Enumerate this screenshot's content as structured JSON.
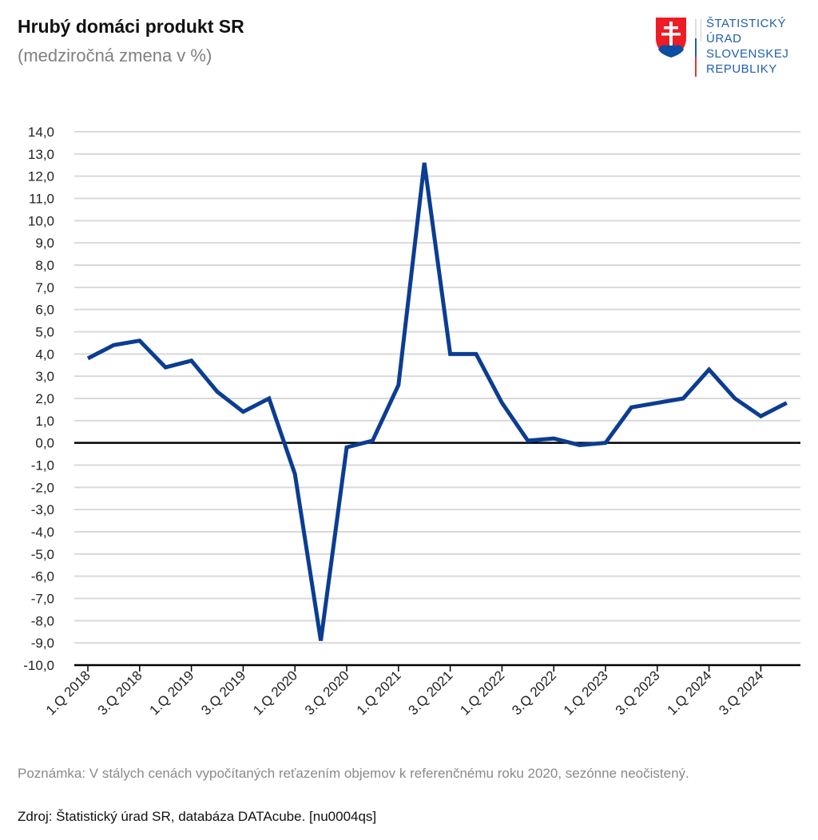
{
  "header": {
    "title": "Hrubý domáci produkt SR",
    "subtitle": "(medziročná zmena v %)"
  },
  "logo": {
    "text_lines": [
      "ŠTATISTICKÝ",
      "ÚRAD",
      "SLOVENSKEJ",
      "REPUBLIKY"
    ],
    "brand_color": "#1f5fae"
  },
  "chart_data": {
    "type": "line",
    "title": "Hrubý domáci produkt SR",
    "subtitle": "(medziročná zmena v %)",
    "ylim": [
      -10,
      14
    ],
    "y_ticks": [
      "14,0",
      "13,0",
      "12,0",
      "11,0",
      "10,0",
      "9,0",
      "8,0",
      "7,0",
      "6,0",
      "5,0",
      "4,0",
      "3,0",
      "2,0",
      "1,0",
      "0,0",
      "-1,0",
      "-2,0",
      "-3,0",
      "-4,0",
      "-5,0",
      "-6,0",
      "-7,0",
      "-8,0",
      "-9,0",
      "-10,0"
    ],
    "grid": true,
    "line_color": "#0b3d91",
    "x": [
      "1.Q 2018",
      "2.Q 2018",
      "3.Q 2018",
      "4.Q 2018",
      "1.Q 2019",
      "2.Q 2019",
      "3.Q 2019",
      "4.Q 2019",
      "1.Q 2020",
      "2.Q 2020",
      "3.Q 2020",
      "4.Q 2020",
      "1.Q 2021",
      "2.Q 2021",
      "3.Q 2021",
      "4.Q 2021",
      "1.Q 2022",
      "2.Q 2022",
      "3.Q 2022",
      "4.Q 2022",
      "1.Q 2023",
      "2.Q 2023",
      "3.Q 2023",
      "4.Q 2023",
      "1.Q 2024",
      "2.Q 2024",
      "3.Q 2024",
      "4.Q 2024"
    ],
    "x_tick_labels": [
      "1.Q 2018",
      "3.Q 2018",
      "1.Q 2019",
      "3.Q 2019",
      "1.Q 2020",
      "3.Q 2020",
      "1.Q 2021",
      "3.Q 2021",
      "1.Q 2022",
      "3.Q 2022",
      "1.Q 2023",
      "3.Q 2023",
      "1.Q 2024",
      "3.Q 2024"
    ],
    "values": [
      3.8,
      4.4,
      4.6,
      3.4,
      3.7,
      2.3,
      1.4,
      2.0,
      -1.4,
      -8.9,
      -0.2,
      0.1,
      2.6,
      12.6,
      4.0,
      4.0,
      1.8,
      0.1,
      0.2,
      -0.1,
      0.0,
      1.6,
      1.8,
      2.0,
      3.3,
      2.0,
      1.2,
      1.8
    ]
  },
  "footer": {
    "note": "Poznámka: V stálych cenách vypočítaných reťazením objemov k referenčnému roku 2020, sezónne neočistený.",
    "source": "Zdroj: Štatistický úrad SR, databáza DATAcube. [nu0004qs]"
  }
}
